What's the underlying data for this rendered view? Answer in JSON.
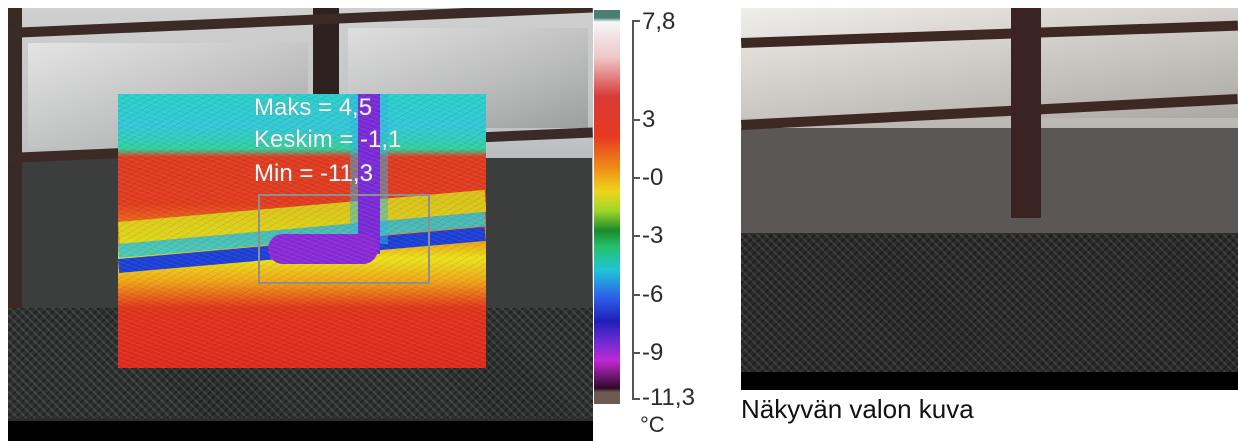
{
  "thermal": {
    "stats": {
      "max": "Maks = 4,5",
      "avg": "Keskim = -1,1",
      "min": "Min = -11,3"
    }
  },
  "scale": {
    "labels": [
      "7,8",
      "3",
      "-0",
      "-3",
      "-6",
      "-9",
      "-11,3"
    ],
    "unit": "°C",
    "range": [
      -11.3,
      7.8
    ]
  },
  "visible": {
    "caption": "Näkyvän valon kuva"
  }
}
